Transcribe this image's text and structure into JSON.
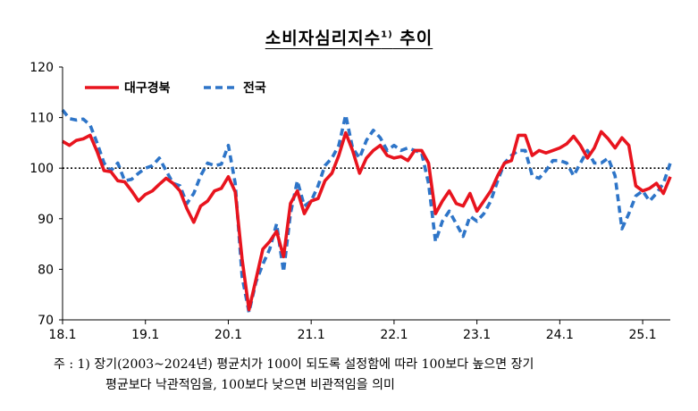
{
  "title": {
    "main": "소비자심리지수",
    "sup": "1)",
    "suffix": " 추이"
  },
  "note": {
    "line1": "주 : 1) 장기(2003~2024년) 평균치가 100이 되도록 설정함에 따라 100보다 높으면 장기",
    "line2": "평균보다 낙관적임을, 100보다 낮으면 비관적임을 의미"
  },
  "colors": {
    "daegu": "#e8141e",
    "national": "#2e75c8",
    "reference": "#000000"
  },
  "chart_data": {
    "type": "line",
    "ylim": [
      70,
      120
    ],
    "yticks": [
      "70",
      "80",
      "90",
      "100",
      "110",
      "120"
    ],
    "xlim": [
      0,
      88
    ],
    "xticks": [
      {
        "label": "18.1",
        "x": 0
      },
      {
        "label": "19.1",
        "x": 12
      },
      {
        "label": "20.1",
        "x": 24
      },
      {
        "label": "21.1",
        "x": 36
      },
      {
        "label": "22.1",
        "x": 48
      },
      {
        "label": "23.1",
        "x": 60
      },
      {
        "label": "24.1",
        "x": 72
      },
      {
        "label": "25.1",
        "x": 84
      }
    ],
    "reference_line": 100,
    "legend_position": "top-left",
    "series": [
      {
        "name": "대구경북",
        "style": "solid",
        "values": [
          105.3,
          104.5,
          105.5,
          105.8,
          106.5,
          103.3,
          99.5,
          99.3,
          97.5,
          97.3,
          95.5,
          93.5,
          94.8,
          95.5,
          96.8,
          98.0,
          97.0,
          95.5,
          92.0,
          89.3,
          92.5,
          93.5,
          95.5,
          96.0,
          98.3,
          95.3,
          82.0,
          72.0,
          78.0,
          84.0,
          85.5,
          87.5,
          82.5,
          93.0,
          95.5,
          91.0,
          93.5,
          94.0,
          97.5,
          99.0,
          102.5,
          107.0,
          103.5,
          99.0,
          102.0,
          103.5,
          104.5,
          102.5,
          102.0,
          102.3,
          101.5,
          103.5,
          103.5,
          101.0,
          91.0,
          93.5,
          95.5,
          93.0,
          92.5,
          95.0,
          91.5,
          93.5,
          95.5,
          98.5,
          101.0,
          101.5,
          106.5,
          106.5,
          102.5,
          103.5,
          103.0,
          103.5,
          104.0,
          104.8,
          106.3,
          104.5,
          102.0,
          104.0,
          107.2,
          105.8,
          104.0,
          106.0,
          104.5,
          96.5,
          95.5,
          96.0,
          97.0,
          95.0,
          98.3
        ]
      },
      {
        "name": "전국",
        "style": "dashed",
        "values": [
          111.5,
          109.8,
          109.5,
          109.7,
          108.5,
          105.0,
          101.0,
          99.5,
          101.0,
          97.5,
          97.8,
          99.0,
          100.0,
          100.5,
          102.0,
          99.5,
          97.0,
          96.5,
          93.0,
          95.0,
          98.5,
          101.0,
          100.5,
          100.8,
          104.5,
          97.0,
          78.5,
          71.5,
          77.5,
          81.0,
          84.0,
          89.0,
          79.5,
          91.0,
          97.5,
          92.5,
          93.5,
          96.5,
          100.5,
          102.0,
          104.5,
          110.5,
          104.0,
          102.0,
          105.5,
          107.5,
          106.0,
          103.5,
          104.5,
          103.5,
          104.0,
          103.5,
          103.0,
          97.0,
          85.5,
          89.5,
          91.5,
          89.0,
          86.5,
          90.5,
          89.5,
          91.0,
          93.5,
          97.5,
          101.0,
          102.5,
          103.5,
          103.5,
          98.5,
          98.0,
          99.5,
          101.5,
          101.5,
          101.0,
          98.5,
          101.0,
          103.5,
          101.0,
          101.0,
          102.0,
          98.5,
          88.0,
          91.0,
          94.5,
          95.5,
          93.5,
          95.0,
          97.0,
          101.0
        ]
      }
    ]
  }
}
